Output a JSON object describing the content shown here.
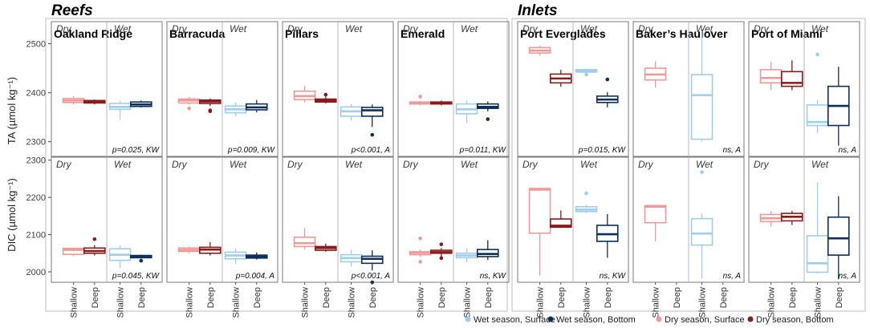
{
  "groups": [
    "Reefs",
    "Inlets"
  ],
  "seasons": [
    "Dry",
    "Wet"
  ],
  "x_categories": [
    "Shallow",
    "Deep",
    "Shallow",
    "Deep"
  ],
  "legend": [
    {
      "label": "Wet season, Surface",
      "color": "#9fcdee"
    },
    {
      "label": "Wet season, Bottom",
      "color": "#0d2e5c"
    },
    {
      "label": "Dry season, Surface",
      "color": "#f19999"
    },
    {
      "label": "Dry season, Bottom",
      "color": "#8b1a1a"
    }
  ],
  "colors": [
    "#f19999",
    "#8b1a1a",
    "#9fcdee",
    "#0d2e5c"
  ],
  "chart_data": {
    "type": "boxplot",
    "rows": [
      {
        "key": "TA",
        "ylabel": "TA (µmol kg⁻¹)",
        "ylim": [
          2270,
          2545
        ],
        "ticks": [
          2300,
          2400,
          2500
        ]
      },
      {
        "key": "DIC",
        "ylabel": "DIC (µmol kg⁻¹)",
        "ylim": [
          1972,
          2308
        ],
        "ticks": [
          2000,
          2100,
          2200,
          2300
        ]
      }
    ],
    "sites": [
      {
        "name": "Oakland Ridge",
        "group": "Reefs",
        "TA": {
          "stat": "p=0.025, KW",
          "boxes": [
            {
              "q1": 2380,
              "med": 2384,
              "q3": 2388,
              "lo": 2376,
              "hi": 2393,
              "out": []
            },
            {
              "q1": 2379,
              "med": 2381,
              "q3": 2384,
              "lo": 2376,
              "hi": 2386,
              "out": []
            },
            {
              "q1": 2366,
              "med": 2371,
              "q3": 2378,
              "lo": 2345,
              "hi": 2383,
              "out": []
            },
            {
              "q1": 2372,
              "med": 2376,
              "q3": 2381,
              "lo": 2370,
              "hi": 2384,
              "out": []
            }
          ]
        },
        "DIC": {
          "stat": "p=0.045, KW",
          "boxes": [
            {
              "q1": 2047,
              "med": 2059,
              "q3": 2063,
              "lo": 2042,
              "hi": 2065,
              "out": []
            },
            {
              "q1": 2050,
              "med": 2056,
              "q3": 2064,
              "lo": 2044,
              "hi": 2072,
              "out": [
                2088
              ]
            },
            {
              "q1": 2031,
              "med": 2046,
              "q3": 2062,
              "lo": 2010,
              "hi": 2072,
              "out": []
            },
            {
              "q1": 2038,
              "med": 2042,
              "q3": 2044,
              "lo": 2036,
              "hi": 2046,
              "out": [
                2030
              ]
            }
          ]
        }
      },
      {
        "name": "Barracuda",
        "group": "Reefs",
        "TA": {
          "stat": "p=0.009, KW",
          "boxes": [
            {
              "q1": 2379,
              "med": 2384,
              "q3": 2387,
              "lo": 2376,
              "hi": 2391,
              "out": [
                2368
              ]
            },
            {
              "q1": 2378,
              "med": 2382,
              "q3": 2385,
              "lo": 2373,
              "hi": 2388,
              "out": [
                2364,
                2362
              ]
            },
            {
              "q1": 2359,
              "med": 2366,
              "q3": 2373,
              "lo": 2352,
              "hi": 2380,
              "out": []
            },
            {
              "q1": 2365,
              "med": 2370,
              "q3": 2377,
              "lo": 2360,
              "hi": 2385,
              "out": []
            }
          ]
        },
        "DIC": {
          "stat": "p=0.004, A",
          "boxes": [
            {
              "q1": 2055,
              "med": 2059,
              "q3": 2064,
              "lo": 2050,
              "hi": 2067,
              "out": []
            },
            {
              "q1": 2050,
              "med": 2060,
              "q3": 2066,
              "lo": 2044,
              "hi": 2080,
              "out": []
            },
            {
              "q1": 2035,
              "med": 2044,
              "q3": 2053,
              "lo": 2022,
              "hi": 2062,
              "out": []
            },
            {
              "q1": 2037,
              "med": 2041,
              "q3": 2045,
              "lo": 2033,
              "hi": 2052,
              "out": []
            }
          ]
        }
      },
      {
        "name": "Pillars",
        "group": "Reefs",
        "TA": {
          "stat": "p<0.001, A",
          "boxes": [
            {
              "q1": 2386,
              "med": 2393,
              "q3": 2403,
              "lo": 2380,
              "hi": 2414,
              "out": []
            },
            {
              "q1": 2381,
              "med": 2384,
              "q3": 2387,
              "lo": 2378,
              "hi": 2392,
              "out": [
                2396
              ]
            },
            {
              "q1": 2352,
              "med": 2362,
              "q3": 2371,
              "lo": 2343,
              "hi": 2377,
              "out": []
            },
            {
              "q1": 2352,
              "med": 2364,
              "q3": 2370,
              "lo": 2330,
              "hi": 2376,
              "out": [
                2314
              ]
            }
          ]
        },
        "DIC": {
          "stat": "p<0.001, A",
          "boxes": [
            {
              "q1": 2068,
              "med": 2077,
              "q3": 2093,
              "lo": 2060,
              "hi": 2118,
              "out": []
            },
            {
              "q1": 2058,
              "med": 2064,
              "q3": 2068,
              "lo": 2054,
              "hi": 2076,
              "out": []
            },
            {
              "q1": 2027,
              "med": 2037,
              "q3": 2046,
              "lo": 2014,
              "hi": 2060,
              "out": []
            },
            {
              "q1": 2023,
              "med": 2035,
              "q3": 2042,
              "lo": 2004,
              "hi": 2058,
              "out": [
                1972
              ]
            }
          ]
        }
      },
      {
        "name": "Emerald",
        "group": "Reefs",
        "TA": {
          "stat": "p=0.011, KW",
          "boxes": [
            {
              "q1": 2377,
              "med": 2379,
              "q3": 2381,
              "lo": 2374,
              "hi": 2383,
              "out": [
                2392
              ]
            },
            {
              "q1": 2377,
              "med": 2379,
              "q3": 2381,
              "lo": 2374,
              "hi": 2384,
              "out": []
            },
            {
              "q1": 2357,
              "med": 2366,
              "q3": 2377,
              "lo": 2338,
              "hi": 2383,
              "out": []
            },
            {
              "q1": 2368,
              "med": 2371,
              "q3": 2377,
              "lo": 2362,
              "hi": 2382,
              "out": [
                2346
              ]
            }
          ]
        },
        "DIC": {
          "stat": "ns, KW",
          "boxes": [
            {
              "q1": 2046,
              "med": 2051,
              "q3": 2054,
              "lo": 2040,
              "hi": 2060,
              "out": [
                2090,
                2027
              ]
            },
            {
              "q1": 2050,
              "med": 2053,
              "q3": 2058,
              "lo": 2042,
              "hi": 2064,
              "out": [
                2074,
                2037
              ]
            },
            {
              "q1": 2038,
              "med": 2044,
              "q3": 2050,
              "lo": 2026,
              "hi": 2062,
              "out": []
            },
            {
              "q1": 2041,
              "med": 2048,
              "q3": 2060,
              "lo": 2032,
              "hi": 2085,
              "out": []
            }
          ]
        }
      },
      {
        "name": "Port Everglades",
        "group": "Inlets",
        "TA": {
          "stat": "p=0.015, KW",
          "boxes": [
            {
              "q1": 2481,
              "med": 2486,
              "q3": 2492,
              "lo": 2476,
              "hi": 2496,
              "out": []
            },
            {
              "q1": 2420,
              "med": 2429,
              "q3": 2438,
              "lo": 2412,
              "hi": 2447,
              "out": []
            },
            {
              "q1": 2442,
              "med": 2445,
              "q3": 2447,
              "lo": 2438,
              "hi": 2449,
              "out": [
                2437
              ]
            },
            {
              "q1": 2380,
              "med": 2386,
              "q3": 2393,
              "lo": 2370,
              "hi": 2401,
              "out": [
                2427
              ]
            }
          ]
        },
        "DIC": {
          "stat": "ns, KW",
          "boxes": [
            {
              "q1": 2104,
              "med": 2221,
              "q3": 2224,
              "lo": 1990,
              "hi": 2226,
              "out": []
            },
            {
              "q1": 2120,
              "med": 2124,
              "q3": 2142,
              "lo": 2118,
              "hi": 2165,
              "out": []
            },
            {
              "q1": 2162,
              "med": 2167,
              "q3": 2175,
              "lo": 2158,
              "hi": 2180,
              "out": [
                2211
              ]
            },
            {
              "q1": 2082,
              "med": 2101,
              "q3": 2125,
              "lo": 2038,
              "hi": 2155,
              "out": []
            }
          ]
        }
      },
      {
        "name": "Baker’s Haulover",
        "group": "Inlets",
        "TA": {
          "stat": "ns, A",
          "boxes": [
            {
              "q1": 2426,
              "med": 2437,
              "q3": 2450,
              "lo": 2410,
              "hi": 2464,
              "out": []
            },
            null,
            {
              "q1": 2305,
              "med": 2395,
              "q3": 2437,
              "lo": 2300,
              "hi": 2527,
              "out": []
            },
            null
          ]
        },
        "DIC": {
          "stat": "ns, A",
          "boxes": [
            {
              "q1": 2132,
              "med": 2175,
              "q3": 2178,
              "lo": 2082,
              "hi": 2180,
              "out": []
            },
            null,
            {
              "q1": 2072,
              "med": 2103,
              "q3": 2143,
              "lo": 1982,
              "hi": 2156,
              "out": [
                2268
              ]
            },
            null
          ]
        }
      },
      {
        "name": "Port of Miami",
        "group": "Inlets",
        "TA": {
          "stat": "ns, A",
          "boxes": [
            {
              "q1": 2420,
              "med": 2430,
              "q3": 2447,
              "lo": 2405,
              "hi": 2463,
              "out": []
            },
            {
              "q1": 2413,
              "med": 2420,
              "q3": 2443,
              "lo": 2405,
              "hi": 2466,
              "out": []
            },
            {
              "q1": 2333,
              "med": 2340,
              "q3": 2375,
              "lo": 2318,
              "hi": 2385,
              "out": [
                2478
              ]
            },
            {
              "q1": 2333,
              "med": 2373,
              "q3": 2413,
              "lo": 2292,
              "hi": 2453,
              "out": []
            }
          ]
        },
        "DIC": {
          "stat": "ns, A",
          "boxes": [
            {
              "q1": 2135,
              "med": 2144,
              "q3": 2154,
              "lo": 2122,
              "hi": 2163,
              "out": []
            },
            {
              "q1": 2137,
              "med": 2148,
              "q3": 2157,
              "lo": 2126,
              "hi": 2164,
              "out": []
            },
            {
              "q1": 1999,
              "med": 2023,
              "q3": 2097,
              "lo": 1996,
              "hi": 2240,
              "out": []
            },
            {
              "q1": 2045,
              "med": 2090,
              "q3": 2147,
              "lo": 1980,
              "hi": 2203,
              "out": []
            }
          ]
        }
      }
    ]
  }
}
